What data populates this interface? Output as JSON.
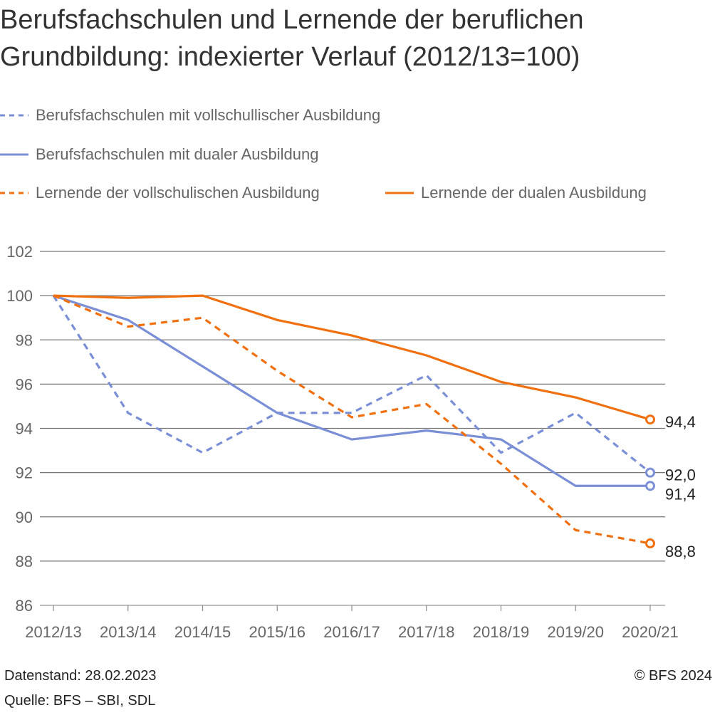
{
  "title_line1": "Berufsfachschulen und Lernende der beruflichen",
  "title_line2": "Grundbildung: indexierter Verlauf (2012/13=100)",
  "footer": {
    "datenstand": "Datenstand: 28.02.2023",
    "quelle": "Quelle: BFS – SBI, SDL",
    "copyright": "© BFS 2024"
  },
  "chart_data": {
    "type": "line",
    "categories": [
      "2012/13",
      "2013/14",
      "2014/15",
      "2015/16",
      "2016/17",
      "2017/18",
      "2018/19",
      "2019/20",
      "2020/21"
    ],
    "ylim": [
      86,
      102
    ],
    "yticks": [
      "86",
      "88",
      "90",
      "92",
      "94",
      "96",
      "98",
      "100",
      "102"
    ],
    "grid": true,
    "legend_placement": "top",
    "series": [
      {
        "name": "Berufsfachschulen mit vollschullischer Ausbildung",
        "color": "#7b8fd6",
        "dashed": true,
        "values": [
          100,
          94.7,
          92.9,
          94.7,
          94.7,
          96.4,
          92.9,
          94.7,
          92.0
        ],
        "end_label": "92,0"
      },
      {
        "name": "Berufsfachschulen mit dualer Ausbildung",
        "color": "#7b8fd6",
        "dashed": false,
        "values": [
          100,
          98.9,
          96.8,
          94.7,
          93.5,
          93.9,
          93.5,
          91.4,
          91.4
        ],
        "end_label": "91,4"
      },
      {
        "name": "Lernende der vollschulischen Ausbildung",
        "color": "#f07010",
        "dashed": true,
        "values": [
          100,
          98.6,
          99.0,
          96.6,
          94.5,
          95.1,
          92.4,
          89.4,
          88.8
        ],
        "end_label": "88,8"
      },
      {
        "name": "Lernende der dualen Ausbildung",
        "color": "#f07010",
        "dashed": false,
        "values": [
          100,
          99.9,
          100,
          98.9,
          98.2,
          97.3,
          96.1,
          95.4,
          94.4
        ],
        "end_label": "94,4"
      }
    ]
  }
}
